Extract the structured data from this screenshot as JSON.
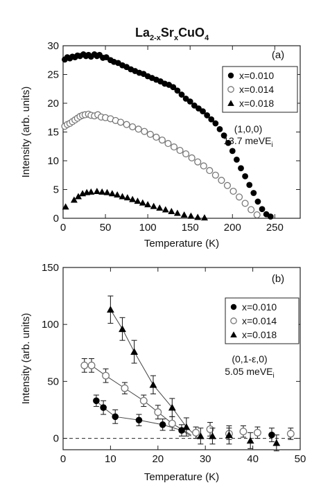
{
  "figure": {
    "title_main": "La",
    "title_sub1": "2-x",
    "title_mid": "Sr",
    "title_sub2": "x",
    "title_end": "CuO",
    "title_sub3": "4"
  },
  "colors": {
    "filled": "#000000",
    "open_fill": "#ffffff",
    "open_stroke": "#777777",
    "axis": "#222222"
  },
  "chart_data": [
    {
      "type": "scatter",
      "panel": "(a)",
      "xlabel": "Temperature (K)",
      "ylabel": "Intensity (arb. units)",
      "xlim": [
        0,
        280
      ],
      "ylim": [
        0,
        30
      ],
      "xticks": [
        0,
        50,
        100,
        150,
        200,
        250
      ],
      "yticks": [
        0,
        5,
        10,
        15,
        20,
        25,
        30
      ],
      "legend_position": "top-right",
      "annotation_line1": "(1,0,0)",
      "annotation_line2": "13.7 meVE",
      "annotation_sub": "i",
      "series": [
        {
          "name": "x=0.010",
          "marker": "filled-circle",
          "x": [
            2,
            5,
            8,
            11,
            14,
            17,
            20,
            24,
            27,
            30,
            33,
            37,
            40,
            43,
            47,
            51,
            56,
            60,
            65,
            70,
            75,
            80,
            85,
            90,
            95,
            100,
            105,
            110,
            115,
            120,
            125,
            130,
            135,
            140,
            145,
            150,
            155,
            160,
            165,
            170,
            175,
            180,
            185,
            190,
            195,
            200,
            205,
            210,
            215,
            220,
            225,
            230,
            235,
            240,
            245
          ],
          "y": [
            27.6,
            28.0,
            27.8,
            28.1,
            28.0,
            28.3,
            28.2,
            28.5,
            28.2,
            28.4,
            28.1,
            28.5,
            28.2,
            28.4,
            27.9,
            28.0,
            27.5,
            27.2,
            27.0,
            26.6,
            26.3,
            25.9,
            25.6,
            25.3,
            25.1,
            24.7,
            24.4,
            24.1,
            23.8,
            23.4,
            23.2,
            22.8,
            22.2,
            21.5,
            20.8,
            20.3,
            19.6,
            19.1,
            18.6,
            17.9,
            17.2,
            16.5,
            15.5,
            14.4,
            13.1,
            11.7,
            10.2,
            8.7,
            7.3,
            5.8,
            4.4,
            2.9,
            1.6,
            0.7,
            0.3
          ]
        },
        {
          "name": "x=0.014",
          "marker": "open-circle",
          "x": [
            2,
            5,
            8,
            11,
            14,
            17,
            20,
            23,
            26,
            30,
            33,
            37,
            41,
            45,
            50,
            56,
            62,
            68,
            75,
            82,
            89,
            96,
            103,
            110,
            117,
            124,
            131,
            138,
            145,
            152,
            159,
            166,
            173,
            180,
            187,
            194,
            201,
            208,
            215,
            222,
            229
          ],
          "y": [
            16.0,
            16.3,
            16.5,
            16.8,
            17.1,
            17.4,
            17.7,
            17.9,
            18.0,
            18.1,
            17.9,
            17.8,
            18.0,
            17.6,
            17.5,
            17.3,
            17.0,
            16.7,
            16.3,
            15.9,
            15.5,
            15.1,
            14.6,
            14.1,
            13.6,
            13.0,
            12.4,
            11.8,
            11.2,
            10.5,
            9.8,
            9.1,
            8.3,
            7.5,
            6.6,
            5.7,
            4.7,
            3.7,
            2.6,
            1.5,
            0.6
          ]
        },
        {
          "name": "x=0.018",
          "marker": "filled-triangle",
          "x": [
            3,
            13,
            18,
            23,
            28,
            33,
            40,
            46,
            52,
            58,
            64,
            70,
            76,
            82,
            88,
            94,
            100,
            107,
            114,
            121,
            128,
            135,
            143,
            151,
            159,
            167
          ],
          "y": [
            2.0,
            3.2,
            3.8,
            4.3,
            4.5,
            4.6,
            4.7,
            4.6,
            4.5,
            4.3,
            4.1,
            3.8,
            3.6,
            3.3,
            3.0,
            2.7,
            2.4,
            2.1,
            1.8,
            1.5,
            1.2,
            0.9,
            0.6,
            0.4,
            0.2,
            0.1
          ]
        }
      ]
    },
    {
      "type": "scatter",
      "panel": "(b)",
      "xlabel": "Temperature (K)",
      "ylabel": "Intensity (arb. units)",
      "xlim": [
        0,
        50
      ],
      "ylim": [
        -10,
        150
      ],
      "xticks": [
        0,
        10,
        20,
        30,
        40,
        50
      ],
      "yticks": [
        0,
        50,
        100,
        150
      ],
      "legend_position": "top-right",
      "annotation_line1": "(0,1-ε,0)",
      "annotation_line2": "5.05 meVE",
      "annotation_sub": "i",
      "series": [
        {
          "name": "x=0.010",
          "marker": "filled-circle",
          "x": [
            7,
            8.5,
            11,
            16,
            21,
            25,
            44
          ],
          "y": [
            33,
            27,
            19,
            16,
            12,
            7,
            3
          ],
          "err": [
            5,
            6,
            6,
            5,
            5,
            5,
            6
          ],
          "line_x": [
            7,
            8.5,
            11,
            16,
            21,
            25,
            27
          ],
          "line_y": [
            33,
            27,
            19,
            16,
            12,
            7,
            2
          ]
        },
        {
          "name": "x=0.014",
          "marker": "open-circle",
          "x": [
            4.5,
            6,
            9,
            13,
            17,
            20,
            23,
            28,
            31,
            35,
            38,
            41,
            48
          ],
          "y": [
            64,
            64,
            55,
            44,
            33,
            23,
            13,
            5,
            8,
            4,
            6,
            5,
            4
          ],
          "err": [
            6,
            6,
            6,
            5,
            5,
            6,
            6,
            5,
            6,
            5,
            5,
            5,
            5
          ],
          "line_x": [
            4.5,
            6,
            9,
            13,
            17,
            20,
            23,
            27
          ],
          "line_y": [
            64,
            64,
            55,
            44,
            33,
            23,
            13,
            3
          ]
        },
        {
          "name": "x=0.018",
          "marker": "filled-triangle",
          "x": [
            10,
            12.5,
            15,
            19,
            23,
            26,
            29,
            31.5,
            35,
            39.5,
            45
          ],
          "y": [
            113,
            96,
            76,
            47,
            27,
            10,
            2,
            2,
            3,
            -2,
            -4
          ],
          "err": [
            12,
            10,
            10,
            8,
            8,
            8,
            7,
            7,
            8,
            7,
            7
          ],
          "line_x": [
            10,
            12.5,
            15,
            19,
            23,
            26,
            28.5
          ],
          "line_y": [
            113,
            96,
            76,
            47,
            27,
            10,
            0
          ]
        }
      ]
    }
  ]
}
